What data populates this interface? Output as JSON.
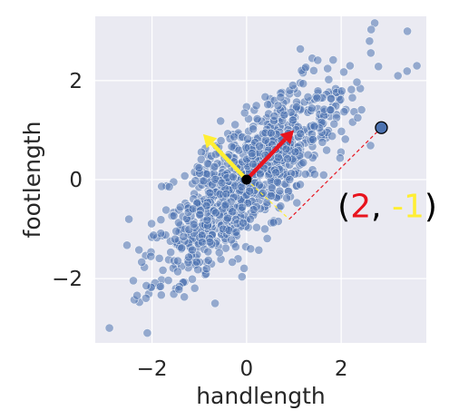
{
  "chart_data": {
    "type": "scatter",
    "title": "",
    "xlabel": "handlength",
    "ylabel": "footlength",
    "xlim": [
      -3.2,
      3.8
    ],
    "ylim": [
      -3.3,
      3.3
    ],
    "grid": true,
    "xticks": [
      -2,
      0,
      2
    ],
    "yticks": [
      -2,
      0,
      2
    ],
    "xtick_labels": [
      "−2",
      "0",
      "2"
    ],
    "ytick_labels": [
      "−2",
      "0",
      "2"
    ],
    "cloud": {
      "n": 1000,
      "correlation": 0.8,
      "std": 1.0,
      "seed": 42,
      "extra_points": [
        [
          3.4,
          3.0
        ],
        [
          2.6,
          2.8
        ],
        [
          3.2,
          2.1
        ],
        [
          3.6,
          2.3
        ],
        [
          -2.9,
          -3.0
        ],
        [
          -2.1,
          -3.1
        ]
      ]
    },
    "highlight_point": {
      "x": 2.85,
      "y": 1.05
    },
    "origin_point": {
      "x": 0,
      "y": 0
    },
    "vectors": [
      {
        "name": "red",
        "dx": 1.0,
        "dy": 1.0,
        "color": "#e8141e"
      },
      {
        "name": "yellow",
        "dx": -0.92,
        "dy": 0.92,
        "color": "#ffee33"
      }
    ],
    "projection_lines": [
      {
        "x1": 0,
        "y1": 0,
        "x2": 0.9,
        "y2": -0.8,
        "color": "#ffee33"
      },
      {
        "x1": 0.9,
        "y1": -0.8,
        "x2": 2.85,
        "y2": 1.05,
        "color": "#e8141e"
      }
    ],
    "annotation": {
      "open": "(",
      "first": "2",
      "sep": ", ",
      "second": "-1",
      "close": ")",
      "colors": {
        "first": "#e8141e",
        "second": "#ffee33",
        "base": "#000000"
      },
      "x": 2.0,
      "y": -0.5
    },
    "colors": {
      "background": "#eaeaf2",
      "grid": "#ffffff",
      "point_fill": "#4c72b0",
      "point_stroke": "#ffffff",
      "highlight_fill": "#4c72b0",
      "highlight_stroke": "#000000"
    }
  }
}
